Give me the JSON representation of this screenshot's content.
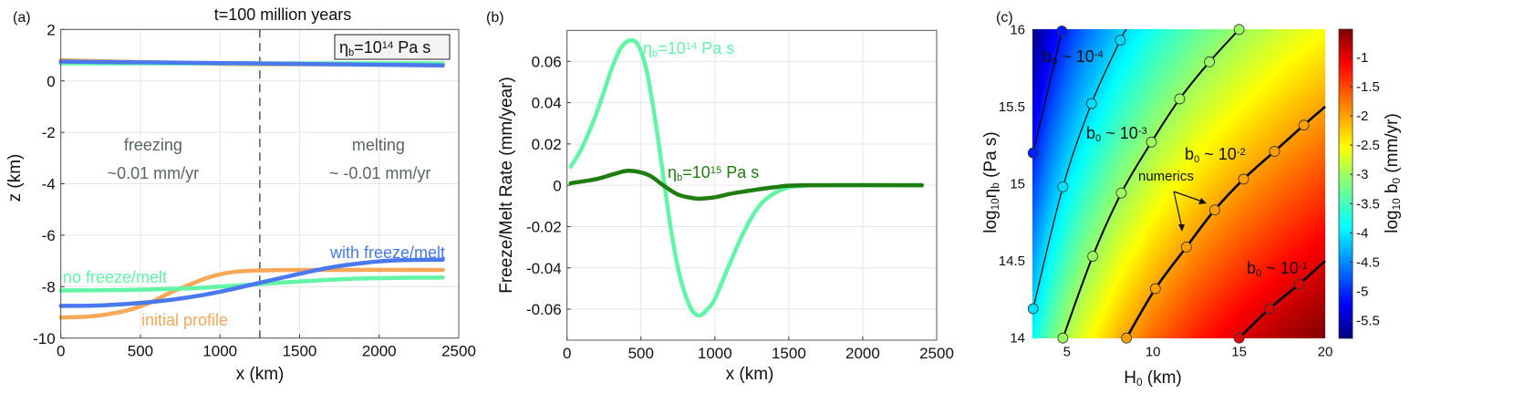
{
  "chart_data": [
    {
      "panel_label": "(a)",
      "type": "line",
      "title": "t=100 million years",
      "xlabel": "x (km)",
      "ylabel": "z (km)",
      "xlim": [
        0,
        2500
      ],
      "ylim": [
        -10,
        2
      ],
      "xticks": [
        0,
        500,
        1000,
        1500,
        2000,
        2500
      ],
      "yticks": [
        -10,
        -8,
        -6,
        -4,
        -2,
        0,
        2
      ],
      "grid": true,
      "legend_box": "η_{b}=10^{14} Pa s",
      "vline": {
        "x": 1250,
        "style": "dashed",
        "color": "#555555"
      },
      "annotations": [
        "freezing",
        "~0.01 mm/yr",
        "melting",
        "~ -0.01 mm/yr"
      ],
      "annotation_color": "#5a6464",
      "series": [
        {
          "name": "initial profile",
          "color": "#f7a758",
          "surface": {
            "x": [
              0,
              600,
              1200,
              2400
            ],
            "y": [
              0.8,
              0.72,
              0.65,
              0.65
            ]
          },
          "base": {
            "x": [
              0,
              200,
              400,
              550,
              700,
              800,
              900,
              1000,
              1100,
              1250,
              1500,
              2400
            ],
            "y": [
              -9.2,
              -9.15,
              -8.95,
              -8.65,
              -8.2,
              -7.95,
              -7.7,
              -7.52,
              -7.42,
              -7.37,
              -7.35,
              -7.35
            ]
          }
        },
        {
          "name": "no freeze/melt",
          "color": "#62f5a6",
          "surface": {
            "x": [
              0,
              2400
            ],
            "y": [
              0.68,
              0.68
            ]
          },
          "base": {
            "x": [
              0,
              400,
              800,
              1000,
              1250,
              1500,
              1800,
              2100,
              2400
            ],
            "y": [
              -8.15,
              -8.13,
              -8.07,
              -8.0,
              -7.9,
              -7.8,
              -7.7,
              -7.66,
              -7.65
            ]
          }
        },
        {
          "name": "with freeze/melt",
          "color": "#4a78ee",
          "surface": {
            "x": [
              0,
              1200,
              2400
            ],
            "y": [
              0.75,
              0.68,
              0.6
            ]
          },
          "base": {
            "x": [
              0,
              200,
              400,
              600,
              800,
              1000,
              1250,
              1500,
              1700,
              1900,
              2100,
              2400
            ],
            "y": [
              -8.75,
              -8.74,
              -8.68,
              -8.58,
              -8.42,
              -8.2,
              -7.85,
              -7.5,
              -7.25,
              -7.08,
              -6.98,
              -6.95
            ]
          }
        }
      ]
    },
    {
      "panel_label": "(b)",
      "type": "line",
      "xlabel": "x (km)",
      "ylabel": "Freeze/Melt Rate (mm/year)",
      "xlim": [
        0,
        2500
      ],
      "ylim": [
        -0.075,
        0.075
      ],
      "xticks": [
        0,
        500,
        1000,
        1500,
        2000,
        2500
      ],
      "yticks": [
        -0.06,
        -0.04,
        -0.02,
        0,
        0.02,
        0.04,
        0.06
      ],
      "ytick_labels": [
        "-0.06",
        "-0.04",
        "-0.02",
        "0",
        "0.02",
        "0.04",
        "0.06"
      ],
      "grid": true,
      "series": [
        {
          "name": "η_{b}=10^{14} Pa s",
          "color": "#62f5a6",
          "x": [
            25,
            100,
            200,
            300,
            360,
            420,
            480,
            540,
            600,
            660,
            700,
            750,
            800,
            850,
            900,
            950,
            1000,
            1100,
            1200,
            1300,
            1400,
            1500,
            1600,
            1700,
            2400
          ],
          "y": [
            0.009,
            0.018,
            0.035,
            0.056,
            0.066,
            0.07,
            0.068,
            0.055,
            0.03,
            0.0,
            -0.02,
            -0.04,
            -0.053,
            -0.061,
            -0.063,
            -0.06,
            -0.055,
            -0.038,
            -0.022,
            -0.01,
            -0.004,
            -0.001,
            -0.0003,
            0,
            0
          ]
        },
        {
          "name": "η_{b}=10^{15} Pa s",
          "color": "#1f7d0f",
          "x": [
            25,
            200,
            320,
            420,
            550,
            650,
            750,
            850,
            900,
            1000,
            1100,
            1200,
            1400,
            1600,
            2400
          ],
          "y": [
            0.001,
            0.003,
            0.0055,
            0.007,
            0.005,
            0.0,
            -0.0045,
            -0.0062,
            -0.0065,
            -0.0058,
            -0.0042,
            -0.003,
            -0.001,
            0,
            0
          ]
        }
      ]
    },
    {
      "panel_label": "(c)",
      "type": "heatmap",
      "xlabel": "H_{0} (km)",
      "ylabel": "log_{10}η_{b} (Pa s)",
      "xlim": [
        3,
        20
      ],
      "ylim": [
        14,
        16
      ],
      "xticks": [
        5,
        10,
        15,
        20
      ],
      "yticks": [
        14,
        14.5,
        15,
        15.5,
        16
      ],
      "grid": false,
      "colormap": "jet",
      "clim": [
        -5.8,
        -0.52
      ],
      "colorbar": {
        "label": "log_{10} b_{0} (mm/yr)",
        "ticks": [
          -5.5,
          -5,
          -4.5,
          -4,
          -3.5,
          -3,
          -2.5,
          -2,
          -1.5,
          -1
        ]
      },
      "field": {
        "x": [
          3,
          4,
          5,
          6,
          8,
          10,
          12.5,
          15,
          17.5,
          20
        ],
        "y": [
          14,
          15,
          16
        ],
        "z": [
          [
            -3.8,
            -3.3,
            -2.91,
            -2.6,
            -2.1,
            -1.71,
            -1.32,
            -1.01,
            -0.74,
            -0.51
          ],
          [
            -4.8,
            -4.3,
            -3.91,
            -3.6,
            -3.1,
            -2.71,
            -2.32,
            -2.01,
            -1.74,
            -1.51
          ],
          [
            -5.8,
            -5.3,
            -4.91,
            -4.6,
            -4.1,
            -3.71,
            -3.32,
            -3.01,
            -2.74,
            -2.51
          ]
        ]
      },
      "contours": [
        {
          "label": "",
          "level": -5,
          "x": [
            3.04,
            4.71
          ],
          "y": [
            15.2,
            15.99
          ],
          "points": true
        },
        {
          "label": "b_{0} ~ 10^{-4}",
          "level": -4,
          "x": [
            3.04,
            4.77,
            6.43,
            8.1,
            8.46
          ],
          "y": [
            14.19,
            14.98,
            15.52,
            15.93,
            16.0
          ],
          "npoints": 4
        },
        {
          "label": "b_{0} ~ 10^{-3}",
          "level": -3,
          "x": [
            4.77,
            6.5,
            8.16,
            9.91,
            11.55,
            13.28,
            15.0
          ],
          "y": [
            14.0,
            14.53,
            14.94,
            15.27,
            15.55,
            15.79,
            16.0
          ]
        },
        {
          "label": "b_{0} ~ 10^{-2}",
          "level": -2,
          "x": [
            8.46,
            10.14,
            11.94,
            13.58,
            15.26,
            17.06,
            18.76,
            20.0
          ],
          "y": [
            14.0,
            14.32,
            14.59,
            14.83,
            15.03,
            15.21,
            15.38,
            15.5
          ],
          "npoints": 7
        },
        {
          "label": "b_{0} ~ 10^{-1}",
          "level": -1,
          "x": [
            15.0,
            16.76,
            18.49,
            20.0
          ],
          "y": [
            14.0,
            14.19,
            14.35,
            14.5
          ],
          "npoints": 3
        }
      ],
      "annotation": "numerics"
    }
  ]
}
